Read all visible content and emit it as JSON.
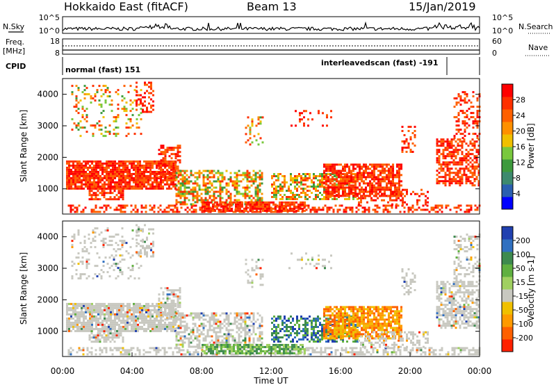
{
  "header": {
    "station": "Hokkaido East (fitACF)",
    "beam": "Beam 13",
    "date": "15/Jan/2019"
  },
  "left_labels": {
    "nsky": "N.Sky",
    "freq": "Freq.",
    "freq_unit": "[MHz]",
    "cpid": "CPID"
  },
  "right_labels": {
    "nsearch": "N.Search",
    "nave": "Nave"
  },
  "noise_panel": {
    "left_ticks": [
      "10^5",
      "10^0"
    ],
    "right_ticks": [
      "10^5",
      "10^0"
    ]
  },
  "freq_panel": {
    "left_ticks": [
      "18",
      "8"
    ],
    "right_ticks": [
      "60",
      "0"
    ]
  },
  "cpid_panel": {
    "normal": "normal (fast) 151",
    "interleaved": "interleavedscan (fast) -191"
  },
  "colors": {
    "power": [
      "#0000ff",
      "#2a5fb0",
      "#3d8a6e",
      "#3d9a3d",
      "#79c83d",
      "#f0c000",
      "#ff9000",
      "#ff6000",
      "#ff3000",
      "#ff0000"
    ],
    "velocity": [
      "#2040b0",
      "#3070c0",
      "#3d8a4e",
      "#60b040",
      "#a0d060",
      "#c8c8c0",
      "#f0c000",
      "#ff9a00",
      "#ff6000",
      "#ff2000"
    ]
  },
  "chart_data": [
    {
      "type": "heatmap",
      "name": "power",
      "xlabel": "",
      "ylabel": "Slant Range [km]",
      "y_ticks": [
        "1000",
        "2000",
        "3000",
        "4000"
      ],
      "ylim": [
        200,
        4500
      ],
      "colorbar": {
        "label": "Power [dB]",
        "ticks": [
          "4",
          "8",
          "12",
          "16",
          "20",
          "24",
          "28"
        ],
        "range": [
          0,
          32
        ]
      }
    },
    {
      "type": "heatmap",
      "name": "velocity",
      "xlabel": "Time UT",
      "ylabel": "Slant Range [km]",
      "x_ticks": [
        "00:00",
        "04:00",
        "08:00",
        "12:00",
        "16:00",
        "20:00",
        "00:00"
      ],
      "y_ticks": [
        "1000",
        "2000",
        "3000",
        "4000"
      ],
      "ylim": [
        200,
        4500
      ],
      "colorbar": {
        "label": "Velocity [m s-1]",
        "ticks": [
          "200",
          "100",
          "50",
          "15",
          "-15",
          "-50",
          "-100",
          "-200"
        ]
      }
    }
  ]
}
